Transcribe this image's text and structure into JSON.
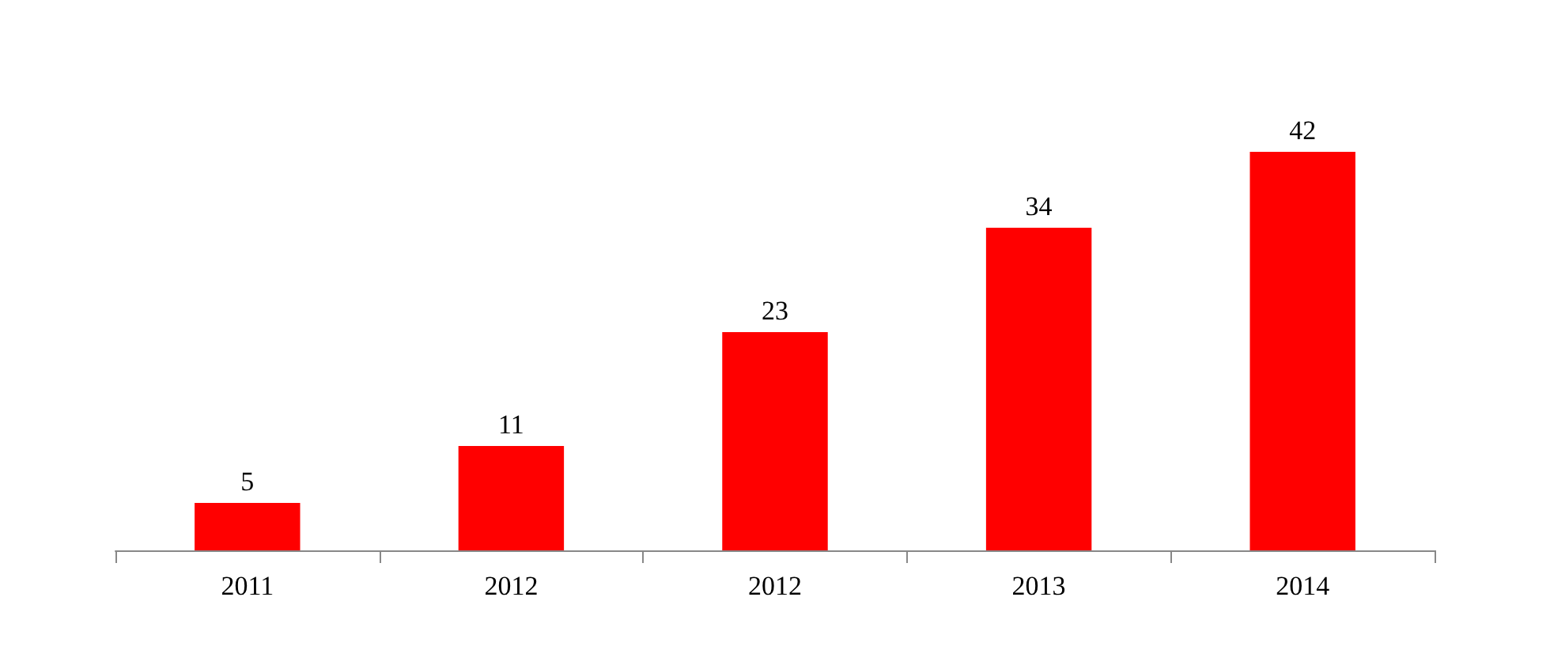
{
  "chart_data": {
    "type": "bar",
    "categories": [
      "2011",
      "2012",
      "2012",
      "2013",
      "2014"
    ],
    "values": [
      5,
      11,
      23,
      34,
      42
    ],
    "color": "#ff0000",
    "data_labels": true
  }
}
